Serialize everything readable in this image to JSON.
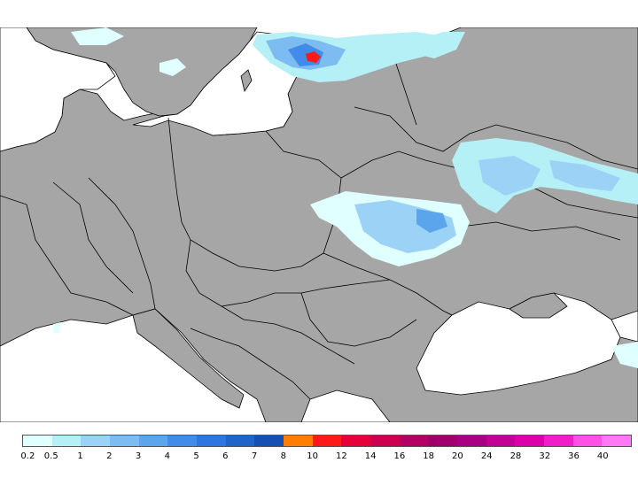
{
  "map": {
    "land_color": "#a6a6a6",
    "sea_color": "#ffffff",
    "border_color": "#000000"
  },
  "legend": {
    "colors": [
      "#e0ffff",
      "#b4f0f5",
      "#9bd2f5",
      "#7dbcf0",
      "#5aa5eb",
      "#418cea",
      "#2d76df",
      "#1f64c8",
      "#1650b4",
      "#ff7d00",
      "#ff1919",
      "#e6003c",
      "#cd0050",
      "#b40064",
      "#a0006e",
      "#aa0082",
      "#c30096",
      "#dc00aa",
      "#f01ec8",
      "#ff50e6",
      "#ff78f5"
    ],
    "labels": [
      "0.2",
      "0.5",
      "1",
      "2",
      "3",
      "4",
      "5",
      "6",
      "7",
      "8",
      "10",
      "12",
      "14",
      "16",
      "18",
      "20",
      "24",
      "28",
      "32",
      "36",
      "40"
    ]
  }
}
